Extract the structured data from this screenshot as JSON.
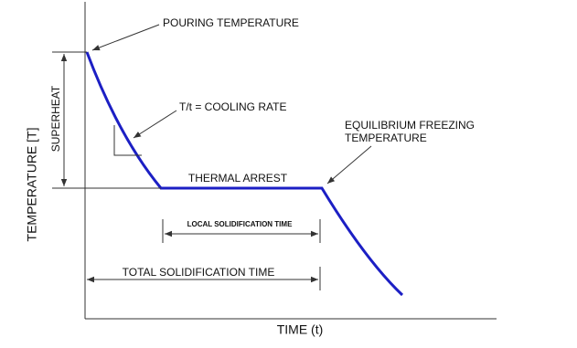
{
  "labels": {
    "pouring_temperature": "POURING TEMPERATURE",
    "cooling_rate": "T/t = COOLING RATE",
    "equilibrium_freezing": [
      "EQUILIBRIUM FREEZING",
      "TEMPERATURE"
    ],
    "thermal_arrest": "THERMAL ARREST",
    "local_solidification_time": "LOCAL SOLIDIFICATION TIME",
    "total_solidification_time": "TOTAL SOLIDIFICATION TIME",
    "superheat": "SUPERHEAT",
    "y_axis": "TEMPERATURE [T]",
    "x_axis": "TIME (t)"
  }
}
